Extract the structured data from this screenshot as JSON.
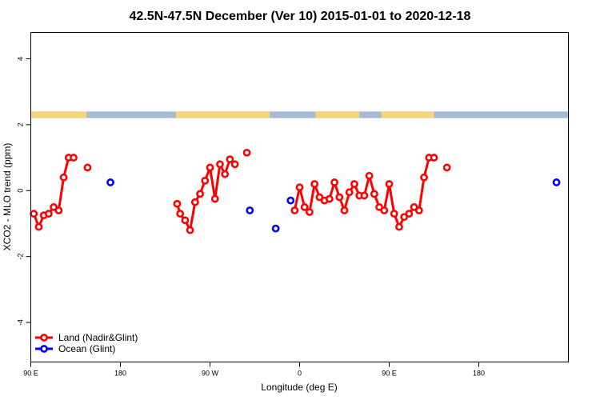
{
  "chart_data": {
    "type": "line",
    "title": "42.5N-47.5N December (Ver 10)   2015-01-01 to 2020-12-18",
    "xlabel": "Longitude (deg E)",
    "ylabel": "XCO2 - MLO trend (ppm)",
    "xlim": [
      -90,
      180
    ],
    "ylim": [
      -5.2,
      4.8
    ],
    "x_ticks": [
      {
        "value": -90,
        "label": "90 E"
      },
      {
        "value": -45,
        "label": "180"
      },
      {
        "value": 0,
        "label": "90 W"
      },
      {
        "value": 45,
        "label": "0"
      },
      {
        "value": 90,
        "label": "90 E"
      },
      {
        "value": 135,
        "label": "180"
      }
    ],
    "y_ticks": [
      {
        "value": -4,
        "label": "-4"
      },
      {
        "value": -2,
        "label": "-2"
      },
      {
        "value": 0,
        "label": "0"
      },
      {
        "value": 2,
        "label": "2"
      },
      {
        "value": 4,
        "label": "4"
      }
    ],
    "surface_strip": {
      "y_range": [
        2.2,
        2.4
      ],
      "land_color": "#f5d67b",
      "ocean_color": "#a7bad6",
      "land_segments": [
        [
          -90,
          -63.5
        ],
        [
          -63.5,
          -62
        ],
        [
          -17,
          30
        ],
        [
          53,
          75
        ],
        [
          86,
          111
        ],
        [
          111,
          112.5
        ]
      ]
    },
    "series": [
      {
        "name": "Land (Nadir&Glint)",
        "color": "#ff0000",
        "connect_max_gap": 4.5,
        "points": [
          [
            -88.5,
            -0.7
          ],
          [
            -86,
            -1.1
          ],
          [
            -83.5,
            -0.75
          ],
          [
            -81,
            -0.7
          ],
          [
            -78.5,
            -0.5
          ],
          [
            -76,
            -0.6
          ],
          [
            -73.5,
            0.4
          ],
          [
            -71,
            1.0
          ],
          [
            -68.5,
            1.0
          ],
          [
            -61.5,
            0.7
          ],
          [
            -16.5,
            -0.4
          ],
          [
            -15,
            -0.7
          ],
          [
            -12.5,
            -0.9
          ],
          [
            -10,
            -1.2
          ],
          [
            -7.5,
            -0.35
          ],
          [
            -5,
            -0.1
          ],
          [
            -2.5,
            0.3
          ],
          [
            0,
            0.7
          ],
          [
            2.5,
            -0.25
          ],
          [
            5,
            0.8
          ],
          [
            7.5,
            0.5
          ],
          [
            10,
            0.95
          ],
          [
            12.5,
            0.8
          ],
          [
            18.5,
            1.15
          ],
          [
            42.5,
            -0.6
          ],
          [
            45,
            0.1
          ],
          [
            47.5,
            -0.5
          ],
          [
            50,
            -0.65
          ],
          [
            52.5,
            0.2
          ],
          [
            55,
            -0.2
          ],
          [
            57.5,
            -0.3
          ],
          [
            60,
            -0.25
          ],
          [
            62.5,
            0.25
          ],
          [
            65,
            -0.2
          ],
          [
            67.5,
            -0.6
          ],
          [
            70,
            -0.05
          ],
          [
            72.5,
            0.2
          ],
          [
            75,
            -0.15
          ],
          [
            77.5,
            -0.15
          ],
          [
            80,
            0.45
          ],
          [
            82.5,
            -0.1
          ],
          [
            85,
            -0.5
          ],
          [
            87.5,
            -0.6
          ],
          [
            90,
            0.2
          ],
          [
            92.5,
            -0.7
          ],
          [
            95,
            -1.1
          ],
          [
            97.5,
            -0.8
          ],
          [
            100,
            -0.7
          ],
          [
            102.5,
            -0.5
          ],
          [
            105,
            -0.6
          ],
          [
            107.5,
            0.4
          ],
          [
            110,
            1.0
          ],
          [
            112.5,
            1.0
          ],
          [
            119,
            0.7
          ]
        ]
      },
      {
        "name": "Ocean (Glint)",
        "color": "#0000ff",
        "connect_max_gap": 0,
        "points": [
          [
            -50,
            0.25
          ],
          [
            20,
            -0.6
          ],
          [
            33,
            -1.15
          ],
          [
            40.5,
            -0.3
          ],
          [
            174,
            0.25
          ]
        ]
      }
    ],
    "legend": {
      "position": "bottom-left",
      "entries": [
        "Land (Nadir&Glint)",
        "Ocean (Glint)"
      ]
    }
  }
}
